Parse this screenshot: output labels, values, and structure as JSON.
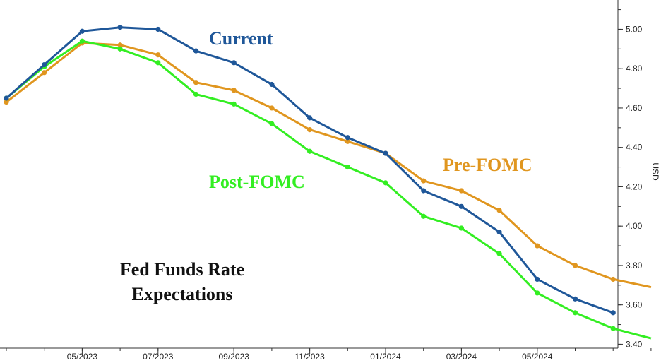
{
  "chart_data": {
    "type": "line",
    "title": "Fed Funds Rate Expectations",
    "title_lines": [
      "Fed Funds Rate",
      "Expectations"
    ],
    "xlabel": "",
    "ylabel": "USD",
    "x_tick_labels": [
      "05/2023",
      "07/2023",
      "09/2023",
      "11/2023",
      "01/2024",
      "03/2024",
      "05/2024"
    ],
    "y_ticks": [
      "3.40",
      "3.60",
      "3.80",
      "4.00",
      "4.20",
      "4.40",
      "4.60",
      "4.80",
      "5.00"
    ],
    "ylim": [
      3.38,
      5.12
    ],
    "grid": false,
    "x": [
      "03/2023",
      "04/2023",
      "05/2023",
      "06/2023",
      "07/2023",
      "08/2023",
      "09/2023",
      "10/2023",
      "11/2023",
      "12/2023",
      "01/2024",
      "02/2024",
      "03/2024",
      "04/2024",
      "05/2024",
      "06/2024",
      "07/2024",
      "08/2024"
    ],
    "series": [
      {
        "name": "Current",
        "color": "#1f5799",
        "values": [
          4.65,
          4.82,
          4.99,
          5.01,
          5.0,
          4.89,
          4.83,
          4.72,
          4.55,
          4.45,
          4.37,
          4.18,
          4.1,
          3.97,
          3.73,
          3.63,
          3.56,
          null
        ]
      },
      {
        "name": "Pre-FOMC",
        "color": "#e0961f",
        "values": [
          4.63,
          4.78,
          4.93,
          4.92,
          4.87,
          4.73,
          4.69,
          4.6,
          4.49,
          4.43,
          4.37,
          4.23,
          4.18,
          4.08,
          3.9,
          3.8,
          3.73,
          3.69
        ]
      },
      {
        "name": "Post-FOMC",
        "color": "#33ee22",
        "values": [
          4.65,
          4.81,
          4.94,
          4.9,
          4.83,
          4.67,
          4.62,
          4.52,
          4.38,
          4.3,
          4.22,
          4.05,
          3.99,
          3.86,
          3.66,
          3.56,
          3.48,
          3.43
        ]
      }
    ],
    "series_labels": [
      {
        "text": "Current",
        "color": "#1f5799"
      },
      {
        "text": "Pre-FOMC",
        "color": "#e0961f"
      },
      {
        "text": "Post-FOMC",
        "color": "#33ee22"
      }
    ]
  }
}
